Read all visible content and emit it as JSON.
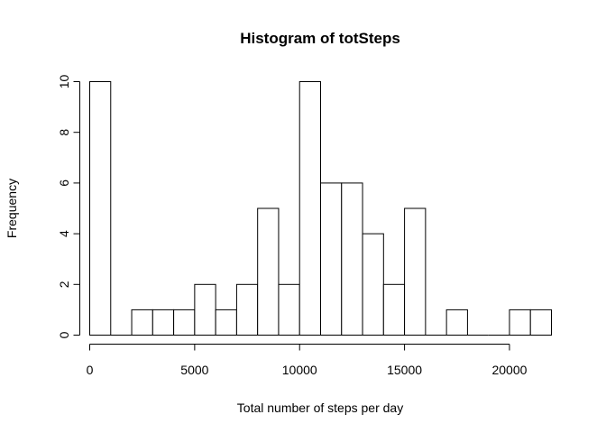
{
  "chart_data": {
    "type": "bar",
    "title": "Histogram of totSteps",
    "xlabel": "Total number of steps per day",
    "ylabel": "Frequency",
    "bin_width": 1000,
    "bins": [
      {
        "start": 0,
        "end": 1000,
        "count": 10
      },
      {
        "start": 1000,
        "end": 2000,
        "count": 0
      },
      {
        "start": 2000,
        "end": 3000,
        "count": 1
      },
      {
        "start": 3000,
        "end": 4000,
        "count": 1
      },
      {
        "start": 4000,
        "end": 5000,
        "count": 1
      },
      {
        "start": 5000,
        "end": 6000,
        "count": 2
      },
      {
        "start": 6000,
        "end": 7000,
        "count": 1
      },
      {
        "start": 7000,
        "end": 8000,
        "count": 2
      },
      {
        "start": 8000,
        "end": 9000,
        "count": 5
      },
      {
        "start": 9000,
        "end": 10000,
        "count": 2
      },
      {
        "start": 10000,
        "end": 11000,
        "count": 10
      },
      {
        "start": 11000,
        "end": 12000,
        "count": 6
      },
      {
        "start": 12000,
        "end": 13000,
        "count": 6
      },
      {
        "start": 13000,
        "end": 14000,
        "count": 4
      },
      {
        "start": 14000,
        "end": 15000,
        "count": 2
      },
      {
        "start": 15000,
        "end": 16000,
        "count": 5
      },
      {
        "start": 16000,
        "end": 17000,
        "count": 0
      },
      {
        "start": 17000,
        "end": 18000,
        "count": 1
      },
      {
        "start": 18000,
        "end": 19000,
        "count": 0
      },
      {
        "start": 19000,
        "end": 20000,
        "count": 0
      },
      {
        "start": 20000,
        "end": 21000,
        "count": 1
      },
      {
        "start": 21000,
        "end": 22000,
        "count": 1
      }
    ],
    "xlim": [
      0,
      22000
    ],
    "ylim": [
      0,
      10
    ],
    "x_ticks": [
      0,
      5000,
      10000,
      15000,
      20000
    ],
    "y_ticks": [
      0,
      2,
      4,
      6,
      8,
      10
    ],
    "grid": false
  }
}
